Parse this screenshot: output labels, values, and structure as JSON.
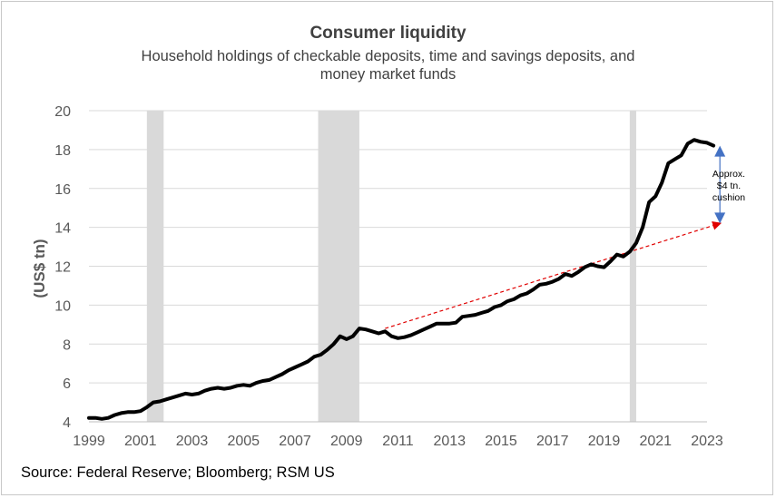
{
  "chart_data": {
    "type": "line",
    "title": "Consumer liquidity",
    "subtitle_lines": [
      "Household holdings of checkable deposits, time and savings deposits, and",
      "money market funds"
    ],
    "ylabel": "(US$ tn)",
    "xlabel": "",
    "ylim": [
      4,
      20
    ],
    "xlim": [
      1999,
      2023
    ],
    "yticks": [
      4,
      6,
      8,
      10,
      12,
      14,
      16,
      18,
      20
    ],
    "xticks": [
      1999,
      2001,
      2003,
      2005,
      2007,
      2009,
      2011,
      2013,
      2015,
      2017,
      2019,
      2021,
      2023
    ],
    "grid": "horizontal",
    "recessions": [
      [
        2001.25,
        2001.9
      ],
      [
        2007.9,
        2009.5
      ],
      [
        2020.0,
        2020.25
      ]
    ],
    "series": [
      {
        "name": "Consumer liquidity",
        "points": [
          [
            1999.0,
            4.2
          ],
          [
            1999.25,
            4.2
          ],
          [
            1999.5,
            4.15
          ],
          [
            1999.75,
            4.2
          ],
          [
            2000.0,
            4.35
          ],
          [
            2000.25,
            4.45
          ],
          [
            2000.5,
            4.5
          ],
          [
            2000.75,
            4.5
          ],
          [
            2001.0,
            4.55
          ],
          [
            2001.25,
            4.75
          ],
          [
            2001.5,
            5.0
          ],
          [
            2001.75,
            5.05
          ],
          [
            2002.0,
            5.15
          ],
          [
            2002.25,
            5.25
          ],
          [
            2002.5,
            5.35
          ],
          [
            2002.75,
            5.45
          ],
          [
            2003.0,
            5.4
          ],
          [
            2003.25,
            5.45
          ],
          [
            2003.5,
            5.6
          ],
          [
            2003.75,
            5.7
          ],
          [
            2004.0,
            5.75
          ],
          [
            2004.25,
            5.7
          ],
          [
            2004.5,
            5.75
          ],
          [
            2004.75,
            5.85
          ],
          [
            2005.0,
            5.9
          ],
          [
            2005.25,
            5.85
          ],
          [
            2005.5,
            6.0
          ],
          [
            2005.75,
            6.1
          ],
          [
            2006.0,
            6.15
          ],
          [
            2006.25,
            6.3
          ],
          [
            2006.5,
            6.45
          ],
          [
            2006.75,
            6.65
          ],
          [
            2007.0,
            6.8
          ],
          [
            2007.25,
            6.95
          ],
          [
            2007.5,
            7.1
          ],
          [
            2007.75,
            7.35
          ],
          [
            2008.0,
            7.45
          ],
          [
            2008.25,
            7.7
          ],
          [
            2008.5,
            8.0
          ],
          [
            2008.75,
            8.4
          ],
          [
            2009.0,
            8.25
          ],
          [
            2009.25,
            8.4
          ],
          [
            2009.5,
            8.8
          ],
          [
            2009.75,
            8.75
          ],
          [
            2010.0,
            8.65
          ],
          [
            2010.25,
            8.55
          ],
          [
            2010.5,
            8.65
          ],
          [
            2010.75,
            8.4
          ],
          [
            2011.0,
            8.3
          ],
          [
            2011.25,
            8.35
          ],
          [
            2011.5,
            8.45
          ],
          [
            2011.75,
            8.6
          ],
          [
            2012.0,
            8.75
          ],
          [
            2012.25,
            8.9
          ],
          [
            2012.5,
            9.05
          ],
          [
            2012.75,
            9.05
          ],
          [
            2013.0,
            9.05
          ],
          [
            2013.25,
            9.1
          ],
          [
            2013.5,
            9.4
          ],
          [
            2013.75,
            9.45
          ],
          [
            2014.0,
            9.5
          ],
          [
            2014.25,
            9.6
          ],
          [
            2014.5,
            9.7
          ],
          [
            2014.75,
            9.9
          ],
          [
            2015.0,
            10.0
          ],
          [
            2015.25,
            10.2
          ],
          [
            2015.5,
            10.3
          ],
          [
            2015.75,
            10.5
          ],
          [
            2016.0,
            10.6
          ],
          [
            2016.25,
            10.8
          ],
          [
            2016.5,
            11.05
          ],
          [
            2016.75,
            11.1
          ],
          [
            2017.0,
            11.2
          ],
          [
            2017.25,
            11.35
          ],
          [
            2017.5,
            11.6
          ],
          [
            2017.75,
            11.5
          ],
          [
            2018.0,
            11.7
          ],
          [
            2018.25,
            11.95
          ],
          [
            2018.5,
            12.1
          ],
          [
            2018.75,
            12.0
          ],
          [
            2019.0,
            11.95
          ],
          [
            2019.25,
            12.25
          ],
          [
            2019.5,
            12.6
          ],
          [
            2019.75,
            12.5
          ],
          [
            2020.0,
            12.75
          ],
          [
            2020.25,
            13.2
          ],
          [
            2020.5,
            14.0
          ],
          [
            2020.75,
            15.3
          ],
          [
            2021.0,
            15.6
          ],
          [
            2021.25,
            16.3
          ],
          [
            2021.5,
            17.3
          ],
          [
            2021.75,
            17.5
          ],
          [
            2022.0,
            17.7
          ],
          [
            2022.25,
            18.3
          ],
          [
            2022.5,
            18.5
          ],
          [
            2022.75,
            18.4
          ],
          [
            2023.0,
            18.35
          ],
          [
            2023.25,
            18.2
          ]
        ]
      }
    ],
    "trend_line": {
      "from": [
        2010.5,
        8.8
      ],
      "to": [
        2023.5,
        14.2
      ],
      "color": "#e00000"
    },
    "cushion": {
      "from_value": 18.2,
      "to_value": 14.2,
      "x": 2023.5,
      "color": "#4472c4"
    },
    "annotation_lines": [
      "Approx.",
      "$4 tn.",
      "cushion"
    ],
    "colors": {
      "line": "#000000",
      "recession": "#d9d9d9",
      "grid": "#d9d9d9",
      "axis": "#bfbfbf",
      "tick_text": "#595959"
    }
  },
  "source": "Source: Federal Reserve; Bloomberg; RSM US"
}
